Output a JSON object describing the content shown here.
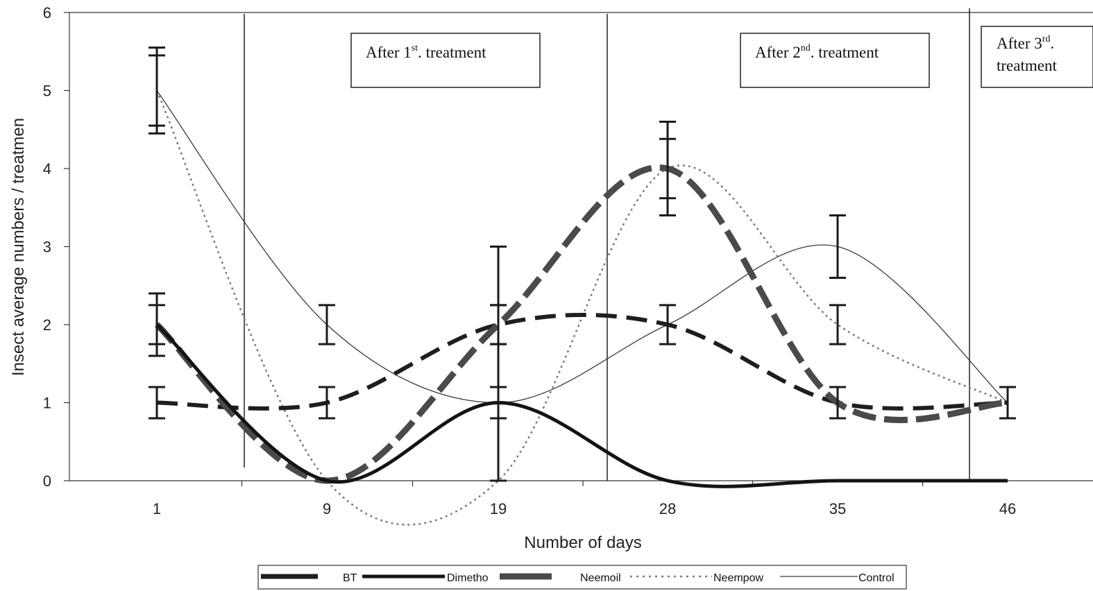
{
  "chart_data": {
    "type": "line",
    "xlabel": "Number of days",
    "ylabel": "Insect average numbers / treatmen",
    "categories": [
      "1",
      "9",
      "19",
      "28",
      "35",
      "46"
    ],
    "ylim": [
      0,
      6
    ],
    "yticks": [
      "0",
      "1",
      "2",
      "3",
      "4",
      "5",
      "6"
    ],
    "grid": false,
    "legend_position": "bottom",
    "series": [
      {
        "name": "BT",
        "values": [
          1,
          1,
          2,
          2,
          1,
          1
        ],
        "style": "dashed",
        "color": "#1e1e1e",
        "errors": [
          0.2,
          0.2,
          0.25,
          0.25,
          0.2,
          0.2
        ]
      },
      {
        "name": "Dimetho",
        "values": [
          2,
          0,
          1,
          0,
          0,
          0
        ],
        "style": "solid",
        "color": "#141414",
        "errors": [
          0.4,
          0,
          0.2,
          0,
          0,
          0
        ]
      },
      {
        "name": "Neemoil",
        "values": [
          2,
          0,
          2,
          4,
          1,
          1
        ],
        "style": "dashed",
        "color": "#4a4a4a",
        "errors": [
          0.25,
          0,
          0.25,
          0.38,
          0.2,
          0
        ]
      },
      {
        "name": "Neempow",
        "values": [
          5,
          0,
          0,
          4,
          2,
          1
        ],
        "style": "dotted",
        "color": "#7a7a7a",
        "errors": [
          0.45,
          0,
          0,
          0.6,
          0.25,
          0
        ]
      },
      {
        "name": "Control",
        "values": [
          5,
          2,
          1,
          2,
          3,
          1
        ],
        "style": "thin",
        "color": "#3a3a3a",
        "errors": [
          0.55,
          0.25,
          2,
          0,
          0.4,
          0
        ]
      }
    ],
    "annotations": [
      {
        "text": "After 1",
        "sup": "st",
        "text2": ". treatment"
      },
      {
        "text": "After 2",
        "sup": "nd",
        "text2": ". treatment"
      },
      {
        "text": "After 3",
        "sup": "rd",
        "text2": ".",
        "line2": "treatment"
      }
    ]
  }
}
